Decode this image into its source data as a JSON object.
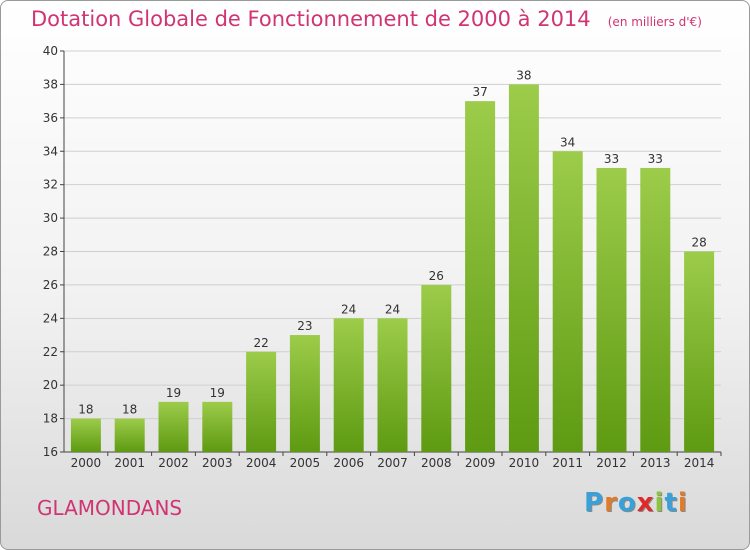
{
  "title": "Dotation Globale de Fonctionnement de 2000 à 2014",
  "unit": "(en milliers d'€)",
  "commune": "GLAMONDANS",
  "logo": {
    "letters": [
      "P",
      "r",
      "o",
      "x",
      "i",
      "t",
      "i"
    ],
    "colors": [
      "#3aa0d8",
      "#e07b2a",
      "#3aa0d8",
      "#e02a2a",
      "#8cc43c",
      "#3aa0d8",
      "#e07b2a"
    ]
  },
  "chart_data": {
    "type": "bar",
    "title": "Dotation Globale de Fonctionnement de 2000 à 2014",
    "subtitle": "(en milliers d'€)",
    "categories": [
      "2000",
      "2001",
      "2002",
      "2003",
      "2004",
      "2005",
      "2006",
      "2007",
      "2008",
      "2009",
      "2010",
      "2011",
      "2012",
      "2013",
      "2014"
    ],
    "values": [
      18,
      18,
      19,
      19,
      22,
      23,
      24,
      24,
      26,
      37,
      38,
      34,
      33,
      33,
      28
    ],
    "ylim": [
      16,
      40
    ],
    "yticks": [
      16,
      18,
      20,
      22,
      24,
      26,
      28,
      30,
      32,
      34,
      36,
      38,
      40
    ],
    "grid": true,
    "colors": {
      "bar_top": "#9ccc4a",
      "bar_bottom": "#5e9a12",
      "text": "#333333",
      "axis": "#444444"
    }
  }
}
